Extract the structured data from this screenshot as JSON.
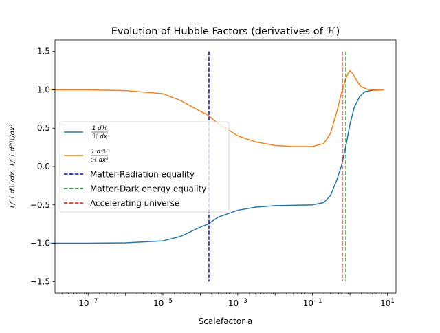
{
  "chart_data": {
    "type": "line",
    "title": "Evolution of Hubble Factors (derivatives of ℋ)",
    "xlabel": "Scalefactor a",
    "ylabel": "1/ℋ dℋ/dx, 1/ℋ d²ℋ/dx²",
    "xscale": "log",
    "xlim": [
      1.3e-08,
      17
    ],
    "ylim": [
      -1.65,
      1.65
    ],
    "grid": false,
    "legend_position": "center-left",
    "xticks": [
      {
        "value": 1e-07,
        "base": "10",
        "exp": "−7"
      },
      {
        "value": 1e-05,
        "base": "10",
        "exp": "−5"
      },
      {
        "value": 0.001,
        "base": "10",
        "exp": "−3"
      },
      {
        "value": 0.1,
        "base": "10",
        "exp": "−1"
      },
      {
        "value": 10,
        "base": "10",
        "exp": "1"
      }
    ],
    "yticks": [
      {
        "value": -1.5,
        "label": "−1.5"
      },
      {
        "value": -1.0,
        "label": "−1.0"
      },
      {
        "value": -0.5,
        "label": "−0.5"
      },
      {
        "value": 0.0,
        "label": "0.0"
      },
      {
        "value": 0.5,
        "label": "0.5"
      },
      {
        "value": 1.0,
        "label": "1.0"
      },
      {
        "value": 1.5,
        "label": "1.5"
      }
    ],
    "series": [
      {
        "name": "1/ℋ dℋ/dx",
        "color": "#1f77b4",
        "points": [
          [
            1e-08,
            -1.0
          ],
          [
            1e-07,
            -1.0
          ],
          [
            1e-06,
            -0.995
          ],
          [
            1e-05,
            -0.97
          ],
          [
            3e-05,
            -0.91
          ],
          [
            0.0001,
            -0.79
          ],
          [
            0.00016,
            -0.75
          ],
          [
            0.0003,
            -0.66
          ],
          [
            0.001,
            -0.57
          ],
          [
            0.003,
            -0.53
          ],
          [
            0.01,
            -0.51
          ],
          [
            0.03,
            -0.505
          ],
          [
            0.1,
            -0.5
          ],
          [
            0.2,
            -0.47
          ],
          [
            0.3,
            -0.38
          ],
          [
            0.45,
            -0.17
          ],
          [
            0.6,
            0.02
          ],
          [
            0.8,
            0.3
          ],
          [
            1.0,
            0.55
          ],
          [
            1.3,
            0.77
          ],
          [
            1.8,
            0.91
          ],
          [
            2.5,
            0.975
          ],
          [
            4,
            0.995
          ],
          [
            8,
            1.0
          ]
        ]
      },
      {
        "name": "1/ℋ d²ℋ/dx²",
        "color": "#ff7f0e",
        "points": [
          [
            1e-08,
            1.0
          ],
          [
            1e-07,
            1.0
          ],
          [
            1e-06,
            0.99
          ],
          [
            1e-05,
            0.95
          ],
          [
            3e-05,
            0.86
          ],
          [
            0.0001,
            0.72
          ],
          [
            0.00016,
            0.67
          ],
          [
            0.0003,
            0.56
          ],
          [
            0.001,
            0.4
          ],
          [
            0.003,
            0.32
          ],
          [
            0.01,
            0.275
          ],
          [
            0.03,
            0.26
          ],
          [
            0.1,
            0.26
          ],
          [
            0.2,
            0.3
          ],
          [
            0.3,
            0.43
          ],
          [
            0.45,
            0.72
          ],
          [
            0.6,
            0.97
          ],
          [
            0.75,
            1.13
          ],
          [
            0.9,
            1.22
          ],
          [
            1.0,
            1.25
          ],
          [
            1.2,
            1.21
          ],
          [
            1.5,
            1.12
          ],
          [
            2,
            1.04
          ],
          [
            3,
            1.005
          ],
          [
            8,
            1.0
          ]
        ]
      }
    ],
    "vlines": [
      {
        "name": "Matter-Radiation equality",
        "x": 0.00017,
        "y_range": [
          -1.5,
          1.5
        ],
        "color": "#0000ff"
      },
      {
        "name": "Matter-Dark energy equality",
        "x": 0.78,
        "y_range": [
          -1.5,
          1.5
        ],
        "color": "#008000"
      },
      {
        "name": "Accelerating universe",
        "x": 0.62,
        "y_range": [
          -1.5,
          1.5
        ],
        "color": "#ff0000"
      }
    ],
    "legend": [
      {
        "kind": "frac",
        "num": "1 dℋ",
        "den": "ℋ dx",
        "color": "#1f77b4",
        "dashed": false
      },
      {
        "kind": "frac",
        "num": "1 d²ℋ",
        "den": "ℋ dx²",
        "color": "#ff7f0e",
        "dashed": false
      },
      {
        "kind": "text",
        "label": "Matter-Radiation equality",
        "color": "#0000ff",
        "dashed": true
      },
      {
        "kind": "text",
        "label": "Matter-Dark energy equality",
        "color": "#008000",
        "dashed": true
      },
      {
        "kind": "text",
        "label": "Accelerating universe",
        "color": "#ff0000",
        "dashed": true
      }
    ]
  }
}
